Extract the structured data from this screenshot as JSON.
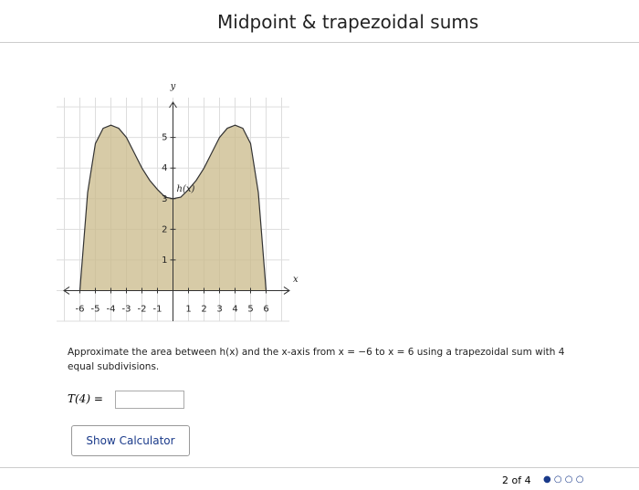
{
  "header": {
    "title": "Midpoint & trapezoidal sums"
  },
  "chart_data": {
    "type": "area",
    "x": [
      -6,
      -5.5,
      -5,
      -4.5,
      -4,
      -3.5,
      -3,
      -2.5,
      -2,
      -1.5,
      -1,
      -0.5,
      0,
      0.5,
      1,
      1.5,
      2,
      2.5,
      3,
      3.5,
      4,
      4.5,
      5,
      5.5,
      6
    ],
    "values": [
      0,
      3.2,
      4.8,
      5.3,
      5.4,
      5.3,
      5,
      4.5,
      4,
      3.6,
      3.3,
      3.05,
      3,
      3.05,
      3.3,
      3.6,
      4,
      4.5,
      5,
      5.3,
      5.4,
      5.3,
      4.8,
      3.2,
      0
    ],
    "color": "#c9b98a",
    "xlabel": "x",
    "ylabel": "y",
    "annotation": "h(x)",
    "xlim": [
      -7.5,
      7.5
    ],
    "ylim": [
      -1,
      6.3
    ],
    "xticks": [
      -6,
      -5,
      -4,
      -3,
      -2,
      -1,
      1,
      2,
      3,
      4,
      5,
      6
    ],
    "yticks": [
      1,
      2,
      3,
      4,
      5
    ],
    "grid": true
  },
  "question": {
    "text": "Approximate the area between h(x) and the x-axis from x = −6 to x = 6 using a trapezoidal sum with 4 equal subdivisions.",
    "answer_label": "T(4) =",
    "button": "Show Calculator"
  },
  "footer": {
    "pagination": "2 of 4"
  }
}
